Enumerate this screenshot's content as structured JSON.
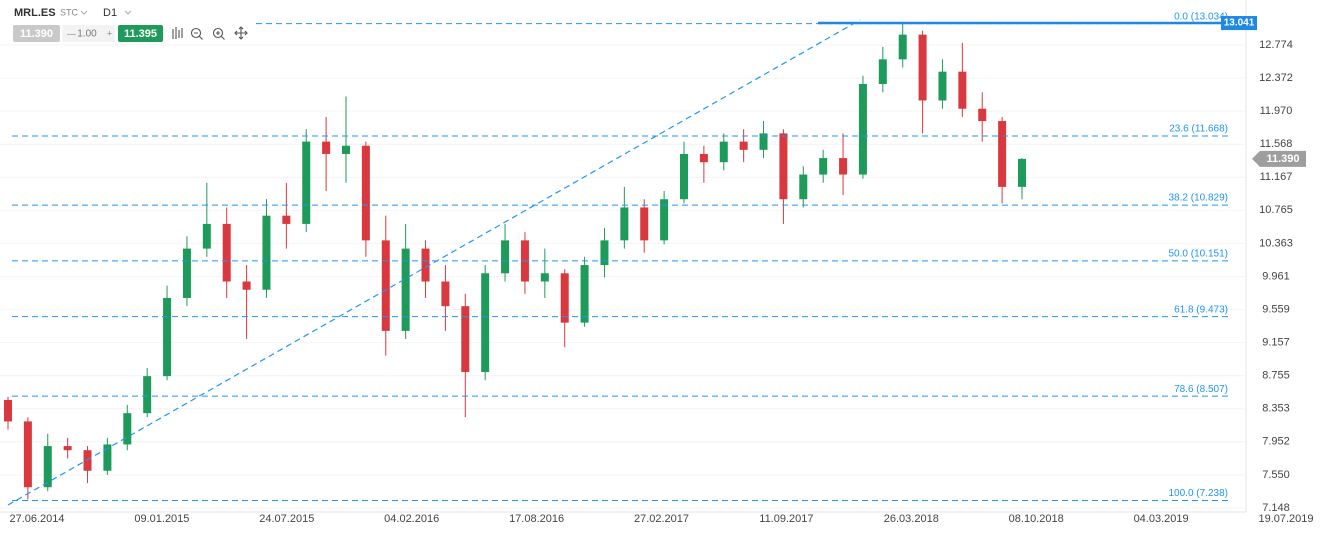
{
  "toolbar": {
    "symbol": "MRL.ES",
    "market": "STC",
    "interval": "D1",
    "bid": "11.390",
    "volume": "1.00",
    "ask": "11.395"
  },
  "chart_data": {
    "type": "candlestick",
    "up_color": "#1e9b5a",
    "down_color": "#d9383f",
    "grid": true,
    "ylim": [
      7.099,
      13.321
    ],
    "yticks": [
      12.774,
      12.372,
      {
        "value": 11.97,
        "label": "11.970"
      },
      11.568,
      11.167,
      10.765,
      10.363,
      9.961,
      9.559,
      9.157,
      8.755,
      8.353,
      7.952,
      {
        "value": 7.55,
        "label": "7.550"
      },
      7.148
    ],
    "xticks": [
      "27.06.2014",
      "09.01.2015",
      "24.07.2015",
      "04.02.2016",
      "17.08.2016",
      "27.02.2017",
      "11.09.2017",
      "26.03.2018",
      "08.10.2018",
      "04.03.2019",
      "19.07.2019"
    ],
    "fib_color": "#2196f3",
    "fib_levels": [
      {
        "value": 13.034,
        "label": "0.0 (13.034)"
      },
      {
        "value": 11.668,
        "label": "23.6 (11.668)"
      },
      {
        "value": 10.829,
        "label": "38.2 (10.829)"
      },
      {
        "value": 10.151,
        "label": "50.0 (10.151)"
      },
      {
        "value": 9.473,
        "label": "61.8 (9.473)"
      },
      {
        "value": 8.507,
        "label": "78.6 (8.507)"
      },
      {
        "value": 7.238,
        "label": "100.0 (7.238)"
      }
    ],
    "price_tags": [
      {
        "value": 13.041,
        "label": "13.041",
        "color": "#1e88e5"
      },
      {
        "value": 11.39,
        "label": "11.390",
        "color": "#9e9e9e"
      }
    ],
    "candles": [
      {
        "o": 8.46,
        "h": 8.5,
        "l": 8.1,
        "c": 8.2
      },
      {
        "o": 8.2,
        "h": 8.25,
        "l": 7.25,
        "c": 7.4
      },
      {
        "o": 7.4,
        "h": 8.05,
        "l": 7.35,
        "c": 7.9
      },
      {
        "o": 7.9,
        "h": 8.0,
        "l": 7.75,
        "c": 7.85
      },
      {
        "o": 7.85,
        "h": 7.9,
        "l": 7.45,
        "c": 7.6
      },
      {
        "o": 7.6,
        "h": 8.0,
        "l": 7.55,
        "c": 7.92
      },
      {
        "o": 7.92,
        "h": 8.4,
        "l": 7.85,
        "c": 8.3
      },
      {
        "o": 8.3,
        "h": 8.85,
        "l": 8.25,
        "c": 8.75
      },
      {
        "o": 8.75,
        "h": 9.85,
        "l": 8.7,
        "c": 9.7
      },
      {
        "o": 9.7,
        "h": 10.45,
        "l": 9.6,
        "c": 10.3
      },
      {
        "o": 10.3,
        "h": 11.1,
        "l": 10.2,
        "c": 10.6
      },
      {
        "o": 10.6,
        "h": 10.8,
        "l": 9.7,
        "c": 9.9
      },
      {
        "o": 9.9,
        "h": 10.1,
        "l": 9.2,
        "c": 9.8
      },
      {
        "o": 9.8,
        "h": 10.9,
        "l": 9.7,
        "c": 10.7
      },
      {
        "o": 10.7,
        "h": 11.1,
        "l": 10.3,
        "c": 10.6
      },
      {
        "o": 10.6,
        "h": 11.75,
        "l": 10.5,
        "c": 11.6
      },
      {
        "o": 11.6,
        "h": 11.9,
        "l": 11.0,
        "c": 11.45
      },
      {
        "o": 11.45,
        "h": 12.15,
        "l": 11.1,
        "c": 11.55
      },
      {
        "o": 11.55,
        "h": 11.6,
        "l": 10.2,
        "c": 10.4
      },
      {
        "o": 10.4,
        "h": 10.7,
        "l": 9.0,
        "c": 9.3
      },
      {
        "o": 9.3,
        "h": 10.6,
        "l": 9.2,
        "c": 10.3
      },
      {
        "o": 10.3,
        "h": 10.4,
        "l": 9.7,
        "c": 9.9
      },
      {
        "o": 9.9,
        "h": 10.1,
        "l": 9.3,
        "c": 9.6
      },
      {
        "o": 9.6,
        "h": 9.75,
        "l": 8.25,
        "c": 8.8
      },
      {
        "o": 8.8,
        "h": 10.1,
        "l": 8.7,
        "c": 10.0
      },
      {
        "o": 10.0,
        "h": 10.6,
        "l": 9.9,
        "c": 10.4
      },
      {
        "o": 10.4,
        "h": 10.5,
        "l": 9.75,
        "c": 9.9
      },
      {
        "o": 9.9,
        "h": 10.3,
        "l": 9.7,
        "c": 10.0
      },
      {
        "o": 10.0,
        "h": 10.05,
        "l": 9.1,
        "c": 9.4
      },
      {
        "o": 9.4,
        "h": 10.2,
        "l": 9.35,
        "c": 10.1
      },
      {
        "o": 10.1,
        "h": 10.55,
        "l": 9.95,
        "c": 10.4
      },
      {
        "o": 10.4,
        "h": 11.05,
        "l": 10.3,
        "c": 10.8
      },
      {
        "o": 10.8,
        "h": 10.9,
        "l": 10.25,
        "c": 10.4
      },
      {
        "o": 10.4,
        "h": 11.0,
        "l": 10.35,
        "c": 10.9
      },
      {
        "o": 10.9,
        "h": 11.6,
        "l": 10.85,
        "c": 11.45
      },
      {
        "o": 11.45,
        "h": 11.55,
        "l": 11.1,
        "c": 11.35
      },
      {
        "o": 11.35,
        "h": 11.7,
        "l": 11.25,
        "c": 11.6
      },
      {
        "o": 11.6,
        "h": 11.75,
        "l": 11.35,
        "c": 11.5
      },
      {
        "o": 11.5,
        "h": 11.85,
        "l": 11.4,
        "c": 11.7
      },
      {
        "o": 11.7,
        "h": 11.75,
        "l": 10.6,
        "c": 10.9
      },
      {
        "o": 10.9,
        "h": 11.3,
        "l": 10.8,
        "c": 11.2
      },
      {
        "o": 11.2,
        "h": 11.5,
        "l": 11.1,
        "c": 11.4
      },
      {
        "o": 11.4,
        "h": 11.7,
        "l": 10.95,
        "c": 11.2
      },
      {
        "o": 11.2,
        "h": 12.4,
        "l": 11.15,
        "c": 12.3
      },
      {
        "o": 12.3,
        "h": 12.75,
        "l": 12.2,
        "c": 12.6
      },
      {
        "o": 12.6,
        "h": 13.05,
        "l": 12.5,
        "c": 12.9
      },
      {
        "o": 12.9,
        "h": 12.95,
        "l": 11.7,
        "c": 12.1
      },
      {
        "o": 12.1,
        "h": 12.6,
        "l": 12.0,
        "c": 12.45
      },
      {
        "o": 12.45,
        "h": 12.8,
        "l": 11.9,
        "c": 12.0
      },
      {
        "o": 12.0,
        "h": 12.2,
        "l": 11.6,
        "c": 11.85
      },
      {
        "o": 11.85,
        "h": 11.9,
        "l": 10.85,
        "c": 11.05
      },
      {
        "o": 11.05,
        "h": 11.4,
        "l": 10.9,
        "c": 11.39
      }
    ]
  }
}
